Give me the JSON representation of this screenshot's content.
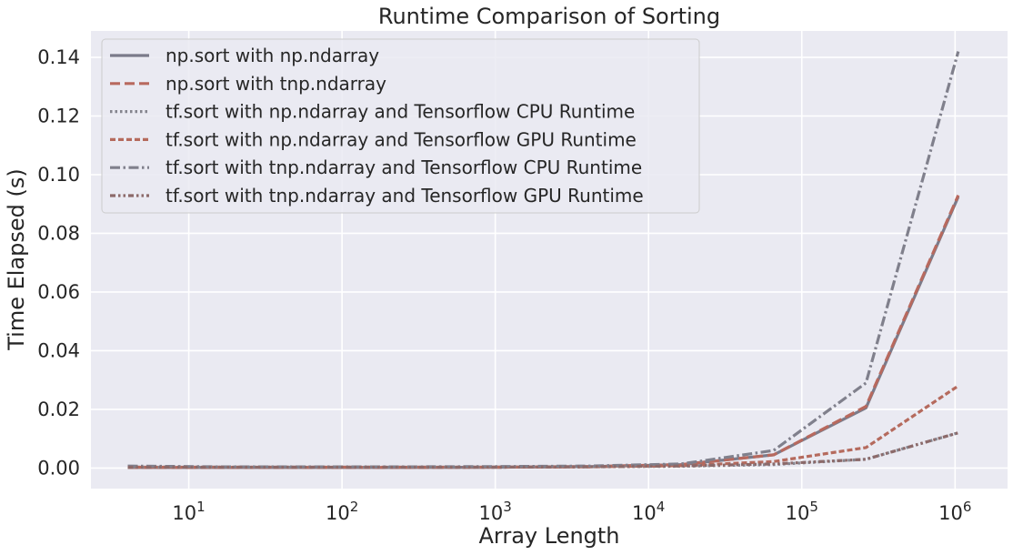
{
  "chart_data": {
    "type": "line",
    "title": "Runtime Comparison of Sorting",
    "xlabel": "Array Length",
    "ylabel": "Time Elapsed (s)",
    "xscale": "log",
    "xlim": [
      2.3,
      2200000
    ],
    "ylim": [
      -0.007,
      0.149
    ],
    "yticks": [
      0.0,
      0.02,
      0.04,
      0.06,
      0.08,
      0.1,
      0.12,
      0.14
    ],
    "ytick_labels": [
      "0.00",
      "0.02",
      "0.04",
      "0.06",
      "0.08",
      "0.10",
      "0.12",
      "0.14"
    ],
    "xticks": [
      10,
      100,
      1000,
      10000,
      100000,
      1000000
    ],
    "xtick_labels": [
      {
        "base": "10",
        "exp": "1"
      },
      {
        "base": "10",
        "exp": "2"
      },
      {
        "base": "10",
        "exp": "3"
      },
      {
        "base": "10",
        "exp": "4"
      },
      {
        "base": "10",
        "exp": "5"
      },
      {
        "base": "10",
        "exp": "6"
      }
    ],
    "x": [
      4,
      16,
      64,
      256,
      1024,
      4096,
      16384,
      65536,
      262144,
      1048576
    ],
    "grid": true,
    "legend_position": "upper-left",
    "series": [
      {
        "name": "np.sort with np.ndarray",
        "color": "#7b7b8a",
        "dash": "solid",
        "values": [
          0.0002,
          0.0002,
          0.0002,
          0.0002,
          0.0003,
          0.0005,
          0.0012,
          0.0045,
          0.0205,
          0.0925
        ]
      },
      {
        "name": "np.sort with tnp.ndarray",
        "color": "#b8695e",
        "dash": "dashed",
        "values": [
          0.0002,
          0.0002,
          0.0002,
          0.0002,
          0.0003,
          0.0005,
          0.0012,
          0.0045,
          0.021,
          0.093
        ]
      },
      {
        "name": "tf.sort with np.ndarray and Tensorflow CPU Runtime",
        "color": "#86868f",
        "dash": "dotted",
        "values": [
          0.0003,
          0.0003,
          0.0003,
          0.0003,
          0.0003,
          0.0004,
          0.0006,
          0.0012,
          0.003,
          0.012
        ]
      },
      {
        "name": "tf.sort with np.ndarray and Tensorflow GPU Runtime",
        "color": "#b56a5d",
        "dash": "short-dashed",
        "values": [
          0.0003,
          0.0003,
          0.0003,
          0.0003,
          0.0003,
          0.0004,
          0.0008,
          0.0022,
          0.007,
          0.028
        ]
      },
      {
        "name": "tf.sort with tnp.ndarray and Tensorflow CPU Runtime",
        "color": "#80808c",
        "dash": "dashdot",
        "values": [
          0.0007,
          0.0004,
          0.0004,
          0.0004,
          0.0005,
          0.0007,
          0.0014,
          0.006,
          0.029,
          0.142
        ]
      },
      {
        "name": "tf.sort with tnp.ndarray and Tensorflow GPU Runtime",
        "color": "#8c6a6a",
        "dash": "dashdotdot",
        "values": [
          0.0003,
          0.0003,
          0.0003,
          0.0003,
          0.0003,
          0.0004,
          0.0007,
          0.0014,
          0.003,
          0.012
        ]
      }
    ]
  }
}
